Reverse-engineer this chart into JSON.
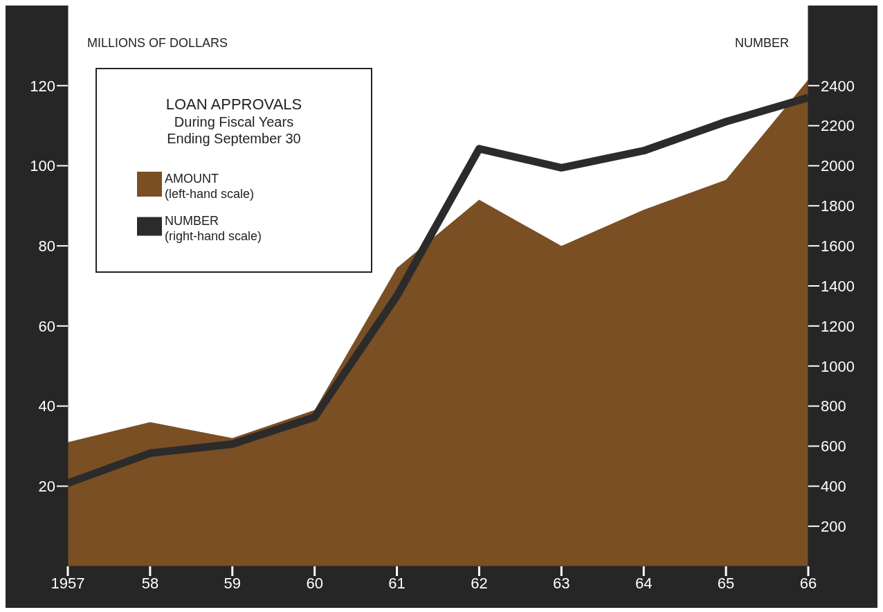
{
  "chart_data": {
    "type": "area",
    "title": "LOAN APPROVALS",
    "subtitle": "During Fiscal Years\nEnding September 30",
    "ylabel": "MILLIONS OF DOLLARS",
    "y2label": "NUMBER",
    "x": [
      1957,
      1958,
      1959,
      1960,
      1961,
      1962,
      1963,
      1964,
      1965,
      1966
    ],
    "xlim": [
      1957,
      1966
    ],
    "xticks": [
      {
        "value": 1957,
        "label": "1957"
      },
      {
        "value": 1958,
        "label": "58"
      },
      {
        "value": 1959,
        "label": "59"
      },
      {
        "value": 1960,
        "label": "60"
      },
      {
        "value": 1961,
        "label": "61"
      },
      {
        "value": 1962,
        "label": "62"
      },
      {
        "value": 1963,
        "label": "63"
      },
      {
        "value": 1964,
        "label": "64"
      },
      {
        "value": 1965,
        "label": "65"
      },
      {
        "value": 1966,
        "label": "66"
      }
    ],
    "ylim": [
      0,
      140
    ],
    "yticks": [
      20,
      40,
      60,
      80,
      100,
      120
    ],
    "y2lim": [
      0,
      2800
    ],
    "y2ticks": [
      200,
      400,
      600,
      800,
      1000,
      1200,
      1400,
      1600,
      1800,
      2000,
      2200,
      2400
    ],
    "legend": "top left",
    "series": [
      {
        "name": "AMOUNT\n(left-hand scale)",
        "type": "area",
        "color": "#7a4f24",
        "values": [
          31,
          36,
          32,
          39,
          74.5,
          91.5,
          80,
          89,
          96.5,
          121.5
        ]
      },
      {
        "name": "NUMBER\n(right-hand scale)",
        "type": "line",
        "axis": "y2",
        "color": "#2b2b2b",
        "values": [
          415,
          565,
          610,
          745,
          1350,
          2085,
          1990,
          2075,
          2220,
          2340
        ]
      }
    ]
  }
}
